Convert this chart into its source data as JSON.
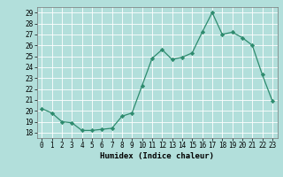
{
  "x": [
    0,
    1,
    2,
    3,
    4,
    5,
    6,
    7,
    8,
    9,
    10,
    11,
    12,
    13,
    14,
    15,
    16,
    17,
    18,
    19,
    20,
    21,
    22,
    23
  ],
  "y": [
    20.2,
    19.8,
    19.0,
    18.9,
    18.2,
    18.2,
    18.3,
    18.4,
    19.5,
    19.8,
    22.3,
    24.8,
    25.6,
    24.7,
    24.9,
    25.3,
    27.2,
    29.0,
    27.0,
    27.2,
    26.7,
    26.0,
    23.3,
    20.9
  ],
  "bg_color": "#b2dfdb",
  "line_color": "#2e8b6e",
  "marker_color": "#2e8b6e",
  "grid_color": "#ffffff",
  "xlabel": "Humidex (Indice chaleur)",
  "ylim": [
    17.5,
    29.5
  ],
  "yticks": [
    18,
    19,
    20,
    21,
    22,
    23,
    24,
    25,
    26,
    27,
    28,
    29
  ],
  "xticks": [
    0,
    1,
    2,
    3,
    4,
    5,
    6,
    7,
    8,
    9,
    10,
    11,
    12,
    13,
    14,
    15,
    16,
    17,
    18,
    19,
    20,
    21,
    22,
    23
  ],
  "xlim": [
    -0.5,
    23.5
  ],
  "xlabel_fontsize": 6.5,
  "tick_fontsize": 5.5
}
